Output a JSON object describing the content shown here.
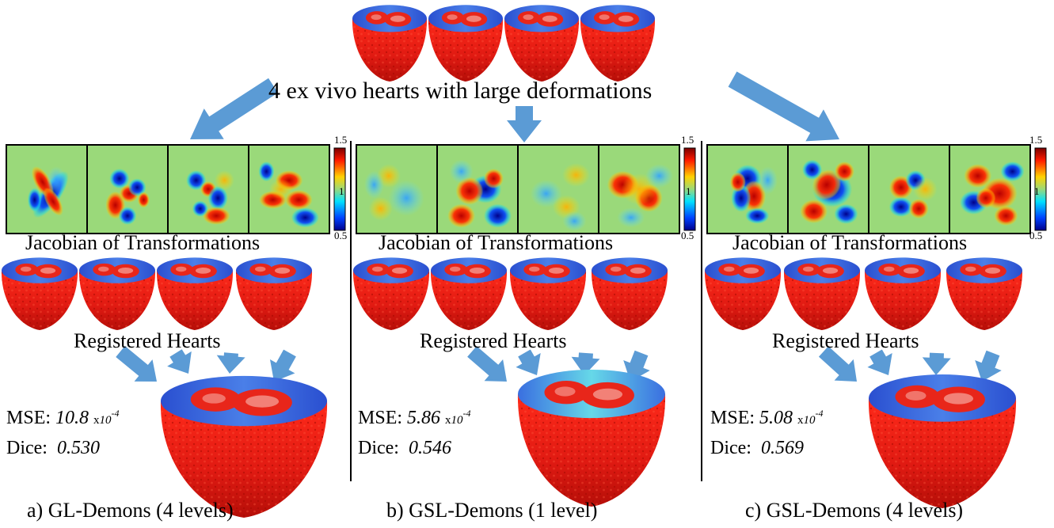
{
  "title": "4 ex vivo hearts with large deformations",
  "colors": {
    "heart_red": "#e01a12",
    "heart_blue": "#3b63d6",
    "arrow_blue": "#5b9bd5",
    "jacobian_bg": "#9ad97a"
  },
  "colorbar": {
    "max": "1.5",
    "mid": "1",
    "min": "0.5"
  },
  "panels": [
    {
      "jacobian_label": "Jacobian of Transformations",
      "registered_label": "Registered Hearts",
      "mse_label": "MSE:",
      "mse_value": "10.8",
      "mse_unit_x": "x",
      "mse_unit_base": "10",
      "mse_unit_exp": "-4",
      "dice_label": "Dice:",
      "dice_value": "0.530",
      "caption": "a) GL-Demons (4 levels)"
    },
    {
      "jacobian_label": "Jacobian of Transformations",
      "registered_label": "Registered Hearts",
      "mse_label": "MSE:",
      "mse_value": "5.86",
      "mse_unit_x": "x",
      "mse_unit_base": "10",
      "mse_unit_exp": "-4",
      "dice_label": "Dice:",
      "dice_value": "0.546",
      "caption": "b) GSL-Demons (1 level)"
    },
    {
      "jacobian_label": "Jacobian of Transformations",
      "registered_label": "Registered Hearts",
      "mse_label": "MSE:",
      "mse_value": "5.08",
      "mse_unit_x": "x",
      "mse_unit_base": "10",
      "mse_unit_exp": "-4",
      "dice_label": "Dice:",
      "dice_value": "0.569",
      "caption": "c) GSL-Demons (4 levels)"
    }
  ]
}
